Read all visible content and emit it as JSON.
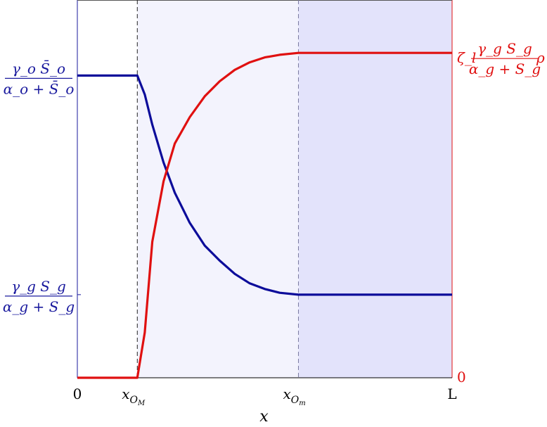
{
  "chart_data": {
    "type": "line",
    "xlabel": "x",
    "x_ticks": [
      {
        "label": "0",
        "x": 0
      },
      {
        "label": "x_{O_M}",
        "x": 0.16
      },
      {
        "label": "x_{O_m}",
        "x": 0.59
      },
      {
        "label": "L",
        "x": 1
      }
    ],
    "left_axis": {
      "color": "#1a1a9e",
      "ticks": [
        {
          "label_num": "γ_o S̄_o",
          "label_den": "α_o + S̄_o",
          "y": 0.8
        },
        {
          "label_num": "γ_g S_g",
          "label_den": "α_g + S_g",
          "y": 0.22
        }
      ],
      "ylim": [
        0,
        1
      ]
    },
    "right_axis": {
      "color": "#e01010",
      "ticks": [
        {
          "label": "0",
          "y": 0
        },
        {
          "label_prefix": "ζ_l",
          "label_num": "γ_g S_g",
          "label_den": "α_g + S_g",
          "label_suffix": "ρ",
          "y": 0.86
        }
      ],
      "ylim": [
        0,
        1
      ]
    },
    "regions": [
      {
        "x_start": 0.16,
        "x_end": 0.59,
        "color": "#f3f3fd"
      },
      {
        "x_start": 0.59,
        "x_end": 1.0,
        "color": "#e3e3fb"
      }
    ],
    "series": [
      {
        "axis": "left",
        "color": "#0c0c9a",
        "x": [
          0,
          0.16,
          0.18,
          0.2,
          0.23,
          0.26,
          0.3,
          0.34,
          0.38,
          0.42,
          0.46,
          0.5,
          0.54,
          0.59,
          1.0
        ],
        "y": [
          0.8,
          0.8,
          0.75,
          0.67,
          0.57,
          0.49,
          0.41,
          0.35,
          0.31,
          0.275,
          0.25,
          0.235,
          0.225,
          0.22,
          0.22
        ]
      },
      {
        "axis": "right",
        "color": "#e01010",
        "x": [
          0,
          0.16,
          0.18,
          0.2,
          0.23,
          0.26,
          0.3,
          0.34,
          0.38,
          0.42,
          0.46,
          0.5,
          0.54,
          0.59,
          1.0
        ],
        "y": [
          0,
          0,
          0.12,
          0.36,
          0.52,
          0.62,
          0.69,
          0.745,
          0.785,
          0.815,
          0.835,
          0.848,
          0.855,
          0.86,
          0.86
        ]
      }
    ]
  }
}
